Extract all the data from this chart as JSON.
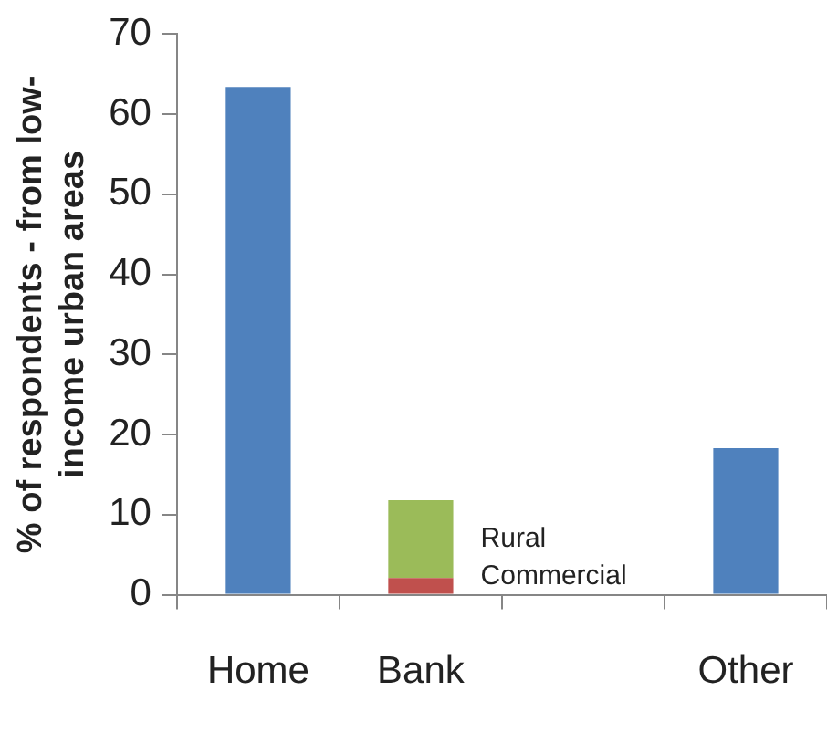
{
  "chart_data": {
    "type": "bar",
    "ylabel": "% of respondents - from low-income urban areas",
    "categories": [
      "Home",
      "Bank",
      null,
      "Other"
    ],
    "series": [
      {
        "color": "#4f81bd",
        "values": [
          63.4,
          null,
          null,
          18.3
        ]
      },
      {
        "name": "Commercial",
        "color": "#c0504d",
        "values": [
          null,
          2.1,
          null,
          null
        ]
      },
      {
        "name": "Rural",
        "color": "#9bbb59",
        "values": [
          null,
          9.7,
          null,
          null
        ]
      }
    ],
    "stacked": true,
    "ylim": [
      0,
      70
    ],
    "yticks": [
      0,
      10,
      20,
      30,
      40,
      50,
      60,
      70
    ],
    "grid": false,
    "legend": false
  }
}
